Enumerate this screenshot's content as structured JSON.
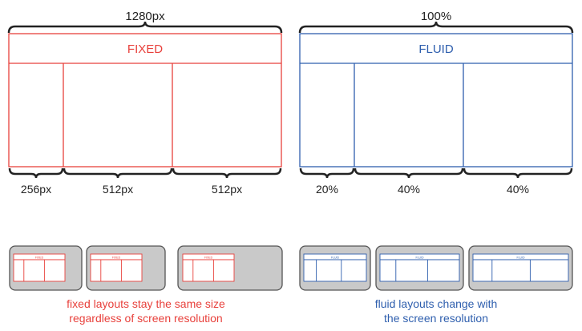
{
  "colors": {
    "fixed": "#e8413c",
    "fluid": "#2f5fae",
    "dark": "#222222",
    "screen_fill": "#c9c9c9",
    "screen_stroke": "#555555"
  },
  "fixed": {
    "top_measure": "1280px",
    "header": "FIXED",
    "column_measures": [
      "256px",
      "512px",
      "512px"
    ],
    "mini_header": "FIXED",
    "caption_line1": "fixed layouts stay the same size",
    "caption_line2": "regardless of screen resolution"
  },
  "fluid": {
    "top_measure": "100%",
    "header": "FLUID",
    "column_measures": [
      "20%",
      "40%",
      "40%"
    ],
    "mini_header": "FLUID",
    "caption_line1": "fluid layouts change with",
    "caption_line2": "the screen resolution"
  }
}
